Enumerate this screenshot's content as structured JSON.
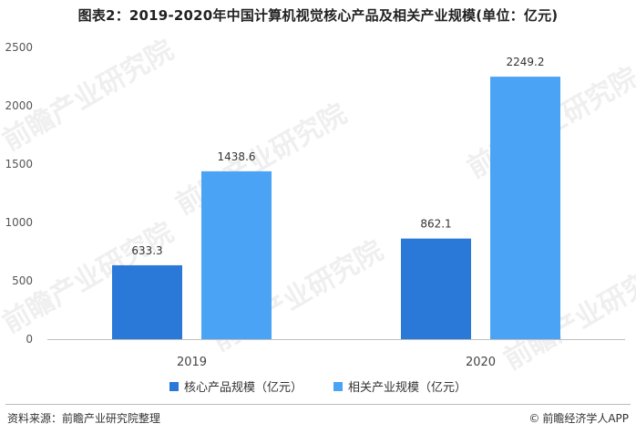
{
  "title": "图表2：2019-2020年中国计算机视觉核心产品及相关产业规模(单位：亿元)",
  "chart_data": {
    "type": "bar",
    "title": "图表2：2019-2020年中国计算机视觉核心产品及相关产业规模(单位：亿元)",
    "categories": [
      "2019",
      "2020"
    ],
    "series": [
      {
        "name": "核心产品规模（亿元）",
        "values": [
          633.3,
          862.1
        ],
        "color": "#2a79d8",
        "labels": [
          "633.3",
          "862.1"
        ]
      },
      {
        "name": "相关产业规模（亿元）",
        "values": [
          1438.6,
          2249.2
        ],
        "color": "#4aa3f5",
        "labels": [
          "1438.6",
          "2249.2"
        ]
      }
    ],
    "ylim": [
      0,
      2500
    ],
    "yticks": [
      0,
      500,
      1000,
      1500,
      2000,
      2500
    ],
    "ytick_labels": [
      "0",
      "500",
      "1000",
      "1500",
      "2000",
      "2500"
    ],
    "grid": false,
    "legend": "bottom"
  },
  "legend": {
    "items": [
      {
        "label": "核心产品规模（亿元）",
        "color": "#2a79d8"
      },
      {
        "label": "相关产业规模（亿元）",
        "color": "#4aa3f5"
      }
    ]
  },
  "footer": {
    "source": "资料来源：前瞻产业研究院整理",
    "credit": "前瞻经济学人APP",
    "copyright_icon": "©"
  },
  "watermark": {
    "text": "前瞻产业研究院"
  }
}
